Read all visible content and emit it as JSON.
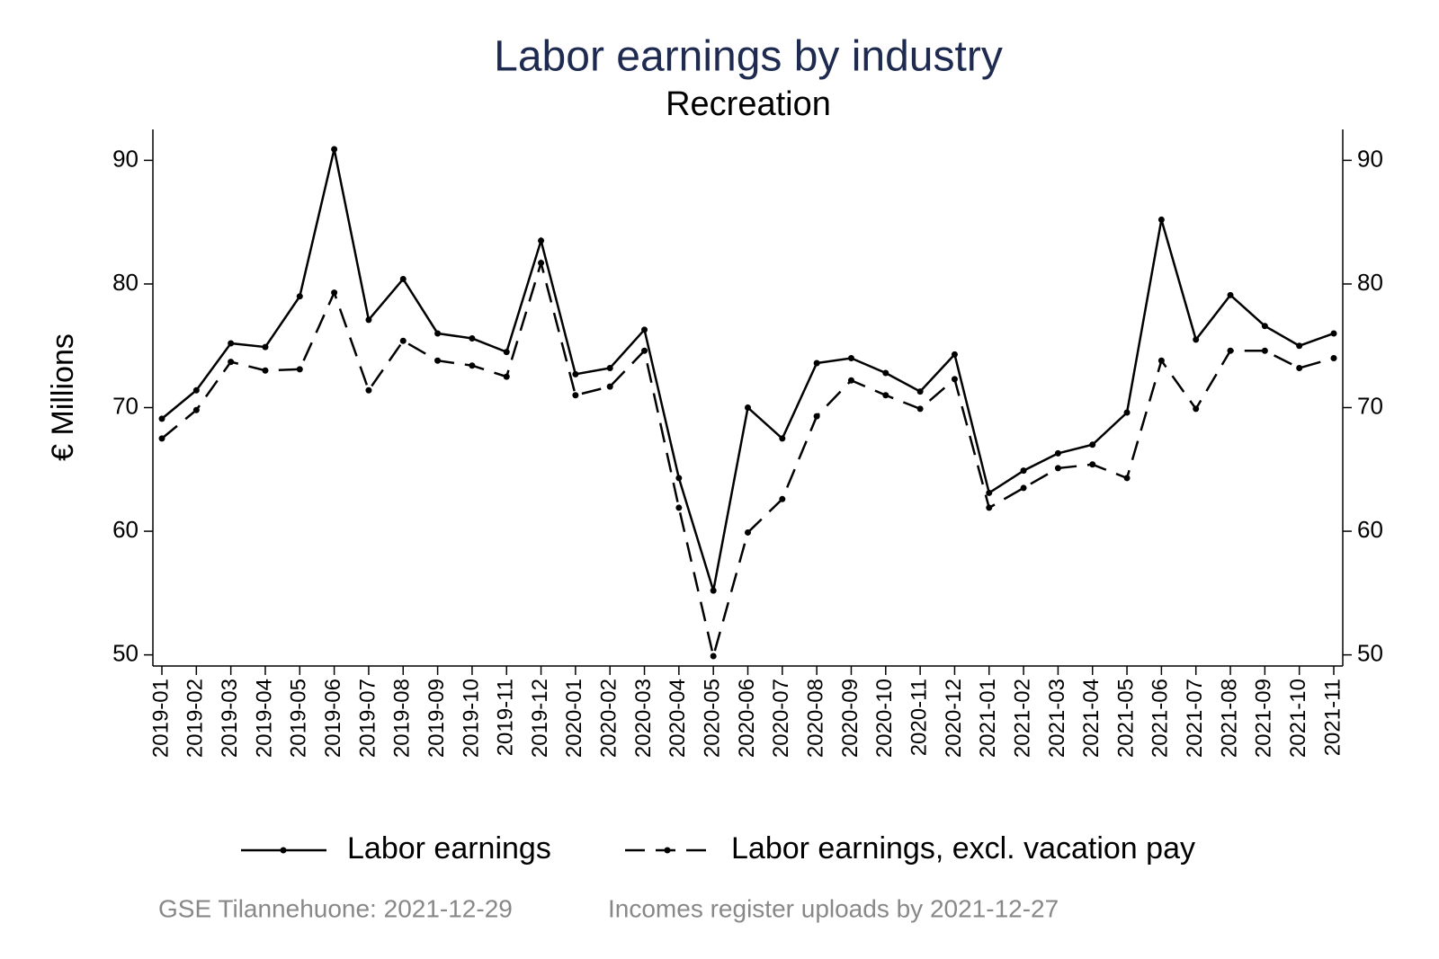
{
  "chart_data": {
    "type": "line",
    "title": "Labor earnings by industry",
    "subtitle": "Recreation",
    "y_label": "€ Millions",
    "categories": [
      "2019-01",
      "2019-02",
      "2019-03",
      "2019-04",
      "2019-05",
      "2019-06",
      "2019-07",
      "2019-08",
      "2019-09",
      "2019-10",
      "2019-11",
      "2019-12",
      "2020-01",
      "2020-02",
      "2020-03",
      "2020-04",
      "2020-05",
      "2020-06",
      "2020-07",
      "2020-08",
      "2020-09",
      "2020-10",
      "2020-11",
      "2020-12",
      "2021-01",
      "2021-02",
      "2021-03",
      "2021-04",
      "2021-05",
      "2021-06",
      "2021-07",
      "2021-08",
      "2021-09",
      "2021-10",
      "2021-11"
    ],
    "series": [
      {
        "name": "Labor earnings",
        "color": "#000000",
        "dash": "solid",
        "values": [
          69.1,
          71.4,
          75.2,
          74.9,
          79.0,
          90.9,
          77.1,
          80.4,
          76.0,
          75.6,
          74.5,
          83.5,
          72.7,
          73.2,
          76.3,
          64.3,
          55.2,
          70.0,
          67.5,
          73.6,
          74.0,
          72.8,
          71.3,
          74.3,
          63.1,
          64.9,
          66.3,
          67.0,
          69.6,
          85.2,
          75.5,
          79.1,
          76.6,
          75.0,
          76.0
        ]
      },
      {
        "name": "Labor earnings, excl. vacation pay",
        "color": "#000000",
        "dash": "dashed",
        "values": [
          67.5,
          69.8,
          73.7,
          73.0,
          73.1,
          79.3,
          71.4,
          75.4,
          73.8,
          73.4,
          72.5,
          81.7,
          71.0,
          71.7,
          74.6,
          61.9,
          49.9,
          59.9,
          62.6,
          69.3,
          72.2,
          71.0,
          69.9,
          72.3,
          61.9,
          63.5,
          65.1,
          65.4,
          64.3,
          73.8,
          69.9,
          74.6,
          74.6,
          73.2,
          74.0
        ]
      }
    ],
    "ylim": [
      49.1,
      92.5
    ],
    "yticks": [
      50,
      60,
      70,
      80,
      90
    ],
    "y2lim": [
      49.1,
      92.5
    ],
    "y2ticks": [
      50,
      60,
      70,
      80,
      90
    ],
    "grid": false,
    "legend": "bottom",
    "notes": [
      "GSE Tilannehuone: 2021-12-29",
      "Incomes register uploads by 2021-12-27"
    ]
  }
}
